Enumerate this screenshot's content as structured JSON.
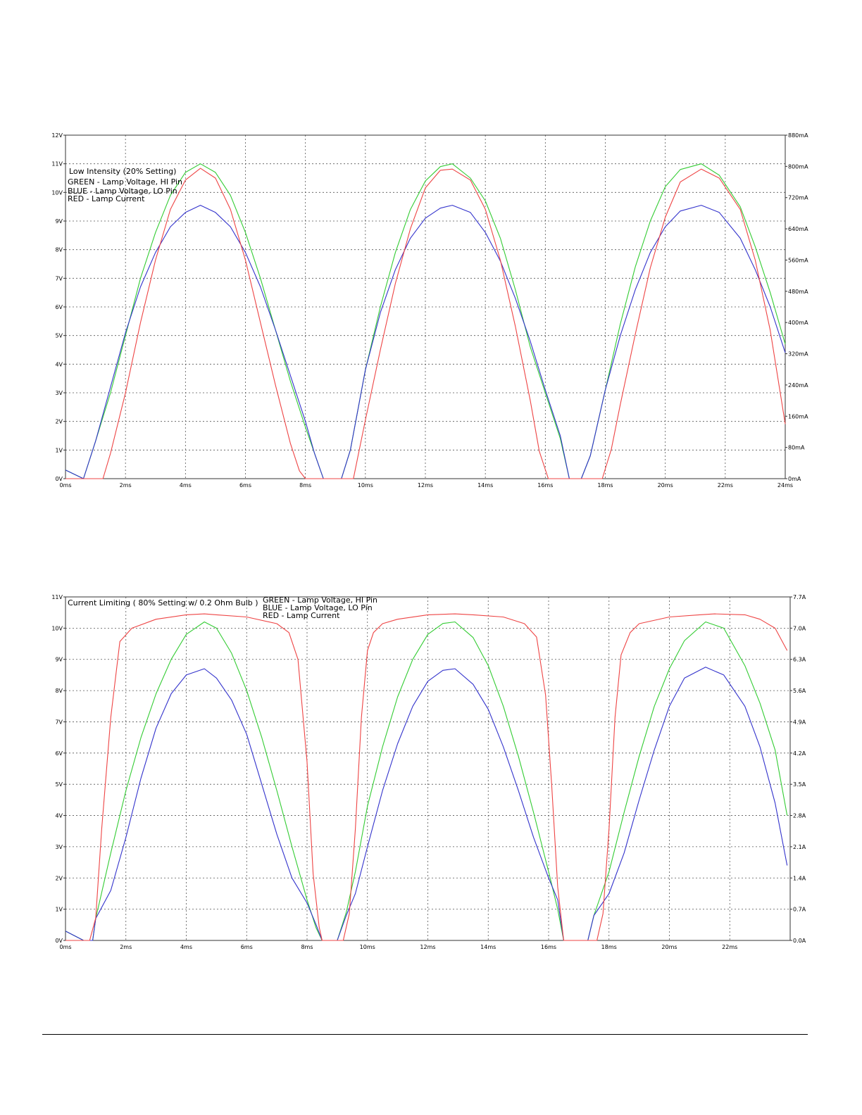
{
  "chart_data": [
    {
      "type": "line",
      "x_tick_labels": [
        "0ms",
        "2ms",
        "4ms",
        "6ms",
        "8ms",
        "10ms",
        "12ms",
        "14ms",
        "16ms",
        "18ms",
        "20ms",
        "22ms",
        "24ms"
      ],
      "x_ticks_ms": [
        0,
        2,
        4,
        6,
        8,
        10,
        12,
        14,
        16,
        18,
        20,
        22,
        24
      ],
      "xlim_ms": [
        0,
        24
      ],
      "y_left_tick_labels": [
        "0V",
        "1V",
        "2V",
        "3V",
        "4V",
        "5V",
        "6V",
        "7V",
        "8V",
        "9V",
        "10V",
        "11V",
        "12V"
      ],
      "y_left_ticks": [
        0,
        1,
        2,
        3,
        4,
        5,
        6,
        7,
        8,
        9,
        10,
        11,
        12
      ],
      "ylim_left": [
        0,
        12
      ],
      "y_right_tick_labels": [
        "0mA",
        "80mA",
        "160mA",
        "240mA",
        "320mA",
        "400mA",
        "480mA",
        "560mA",
        "640mA",
        "720mA",
        "800mA",
        "880mA"
      ],
      "y_right_ticks": [
        0,
        80,
        160,
        240,
        320,
        400,
        480,
        560,
        640,
        720,
        800,
        880
      ],
      "ylim_right": [
        0,
        880
      ],
      "grid": true,
      "annotations": [
        "Low Intensity (20% Setting)",
        "GREEN - Lamp Voltage, HI Pin",
        "BLUE - Lamp Voltage, LO Pin",
        "RED - Lamp Current"
      ],
      "series": [
        {
          "color": "#33cc33",
          "axis": "left",
          "x": [
            0,
            0.6,
            1.0,
            1.5,
            2.0,
            2.5,
            3.0,
            3.5,
            4.0,
            4.5,
            5.0,
            5.5,
            6.0,
            6.5,
            7.0,
            7.5,
            8.0,
            8.3,
            8.6,
            8.9,
            9.2,
            9.5,
            10.0,
            10.5,
            11.0,
            11.5,
            12.0,
            12.5,
            12.9,
            13.5,
            14.0,
            14.5,
            15.0,
            15.5,
            16.0,
            16.5,
            16.8,
            17.2,
            17.5,
            18.0,
            18.5,
            19.0,
            19.5,
            20.0,
            20.5,
            21.2,
            21.8,
            22.5,
            23.0,
            23.5,
            24.0
          ],
          "y": [
            0.3,
            0,
            1.3,
            3.0,
            5.0,
            7.0,
            8.6,
            9.9,
            10.7,
            11.0,
            10.7,
            9.9,
            8.6,
            7.0,
            5.2,
            3.4,
            1.8,
            0.9,
            0,
            0,
            0,
            1.0,
            3.8,
            6.0,
            7.9,
            9.4,
            10.4,
            10.9,
            11.0,
            10.5,
            9.7,
            8.4,
            6.6,
            4.6,
            3.0,
            1.4,
            0,
            0,
            0.8,
            3.1,
            5.4,
            7.4,
            9.0,
            10.2,
            10.8,
            11.0,
            10.6,
            9.5,
            8.1,
            6.5,
            4.7
          ]
        },
        {
          "color": "#3333cc",
          "axis": "left",
          "x": [
            0,
            0.6,
            1.0,
            1.5,
            2.0,
            2.5,
            3.0,
            3.5,
            4.0,
            4.5,
            5.0,
            5.5,
            6.0,
            6.5,
            7.0,
            7.5,
            8.0,
            8.3,
            8.6,
            8.9,
            9.2,
            9.5,
            10.0,
            10.5,
            11.0,
            11.5,
            12.0,
            12.5,
            12.9,
            13.5,
            14.0,
            14.5,
            15.0,
            15.5,
            16.0,
            16.5,
            16.8,
            17.2,
            17.5,
            18.0,
            18.5,
            19.0,
            19.5,
            20.0,
            20.5,
            21.2,
            21.8,
            22.5,
            23.0,
            23.5,
            24.0
          ],
          "y": [
            0.3,
            0,
            1.3,
            3.2,
            5.1,
            6.7,
            7.9,
            8.8,
            9.3,
            9.55,
            9.3,
            8.8,
            7.9,
            6.7,
            5.2,
            3.6,
            2.0,
            0.9,
            0,
            0,
            0,
            1.0,
            3.8,
            5.8,
            7.3,
            8.4,
            9.1,
            9.45,
            9.55,
            9.3,
            8.6,
            7.6,
            6.3,
            4.8,
            3.1,
            1.5,
            0,
            0,
            0.8,
            3.1,
            5.0,
            6.6,
            7.9,
            8.8,
            9.35,
            9.55,
            9.3,
            8.4,
            7.3,
            6.0,
            4.4
          ]
        },
        {
          "color": "#ee4444",
          "axis": "right",
          "x": [
            0,
            1.25,
            1.5,
            2.0,
            2.5,
            3.0,
            3.5,
            4.0,
            4.5,
            5.0,
            5.5,
            6.0,
            6.5,
            7.0,
            7.5,
            7.8,
            8.0,
            9.6,
            10.0,
            10.5,
            11.0,
            11.5,
            12.0,
            12.5,
            12.9,
            13.5,
            14.0,
            14.5,
            15.0,
            15.5,
            15.8,
            16.1,
            17.9,
            18.2,
            18.5,
            19.0,
            19.5,
            20.0,
            20.5,
            21.2,
            21.8,
            22.5,
            23.0,
            23.5,
            24.0
          ],
          "y": [
            0,
            0,
            65,
            220,
            400,
            560,
            690,
            765,
            795,
            770,
            690,
            560,
            400,
            240,
            90,
            20,
            0,
            0,
            150,
            330,
            500,
            640,
            745,
            790,
            793,
            765,
            690,
            560,
            390,
            200,
            70,
            0,
            0,
            75,
            190,
            370,
            540,
            670,
            760,
            793,
            770,
            690,
            560,
            380,
            140
          ]
        }
      ]
    },
    {
      "type": "line",
      "x_tick_labels": [
        "0ms",
        "2ms",
        "4ms",
        "6ms",
        "8ms",
        "10ms",
        "12ms",
        "14ms",
        "16ms",
        "18ms",
        "20ms",
        "22ms"
      ],
      "x_ticks_ms": [
        0,
        2,
        4,
        6,
        8,
        10,
        12,
        14,
        16,
        18,
        20,
        22
      ],
      "xlim_ms": [
        0,
        24
      ],
      "y_left_tick_labels": [
        "0V",
        "1V",
        "2V",
        "3V",
        "4V",
        "5V",
        "6V",
        "7V",
        "8V",
        "9V",
        "10V",
        "11V"
      ],
      "y_left_ticks": [
        0,
        1,
        2,
        3,
        4,
        5,
        6,
        7,
        8,
        9,
        10,
        11
      ],
      "ylim_left": [
        0,
        11
      ],
      "y_right_tick_labels": [
        "0.0A",
        "0.7A",
        "1.4A",
        "2.1A",
        "2.8A",
        "3.5A",
        "4.2A",
        "4.9A",
        "5.6A",
        "6.3A",
        "7.0A",
        "7.7A"
      ],
      "y_right_ticks": [
        0,
        0.7,
        1.4,
        2.1,
        2.8,
        3.5,
        4.2,
        4.9,
        5.6,
        6.3,
        7.0,
        7.7
      ],
      "ylim_right": [
        0,
        7.7
      ],
      "grid": true,
      "annotations": [
        "Current Limiting ( 80% Setting w/ 0.2 Ohm Bulb )",
        "GREEN - Lamp Voltage, HI Pin",
        "BLUE - Lamp Voltage, LO Pin",
        "RED - Lamp Current"
      ],
      "series": [
        {
          "color": "#33cc33",
          "axis": "left",
          "x": [
            0,
            0.6,
            0.9,
            1.0,
            1.5,
            2.0,
            2.5,
            3.0,
            3.5,
            4.0,
            4.6,
            5.0,
            5.5,
            6.0,
            6.5,
            7.0,
            7.5,
            8.0,
            8.3,
            8.5,
            9.0,
            9.3,
            9.6,
            10.0,
            10.5,
            11.0,
            11.5,
            12.0,
            12.5,
            12.9,
            13.5,
            14.0,
            14.5,
            15.0,
            15.5,
            16.0,
            16.3,
            16.5,
            17.3,
            17.5,
            18.0,
            18.5,
            19.0,
            19.5,
            20.0,
            20.5,
            21.2,
            21.8,
            22.5,
            23.0,
            23.5,
            23.9
          ],
          "y": [
            0.3,
            0,
            0,
            0.7,
            2.8,
            4.8,
            6.5,
            7.9,
            9.0,
            9.8,
            10.2,
            10.0,
            9.2,
            8.0,
            6.5,
            4.8,
            3.0,
            1.3,
            0.4,
            0,
            0,
            0.9,
            2.2,
            4.3,
            6.2,
            7.8,
            9.0,
            9.8,
            10.15,
            10.2,
            9.7,
            8.8,
            7.5,
            5.9,
            4.1,
            2.2,
            1.0,
            0,
            0,
            0.8,
            2.2,
            4.1,
            5.9,
            7.5,
            8.7,
            9.6,
            10.2,
            10.0,
            8.8,
            7.6,
            6.1,
            4.0
          ]
        },
        {
          "color": "#3333cc",
          "axis": "left",
          "x": [
            0,
            0.6,
            0.9,
            1.0,
            1.5,
            2.0,
            2.5,
            3.0,
            3.5,
            4.0,
            4.6,
            5.0,
            5.5,
            6.0,
            6.5,
            7.0,
            7.5,
            8.0,
            8.3,
            8.5,
            9.0,
            9.3,
            9.6,
            10.0,
            10.5,
            11.0,
            11.5,
            12.0,
            12.5,
            12.9,
            13.5,
            14.0,
            14.5,
            15.0,
            15.5,
            16.0,
            16.3,
            16.5,
            17.3,
            17.5,
            18.0,
            18.5,
            19.0,
            19.5,
            20.0,
            20.5,
            21.2,
            21.8,
            22.5,
            23.0,
            23.5,
            23.9
          ],
          "y": [
            0.3,
            0,
            0,
            0.7,
            1.6,
            3.3,
            5.2,
            6.8,
            7.9,
            8.5,
            8.7,
            8.4,
            7.7,
            6.6,
            5.0,
            3.4,
            2.0,
            1.2,
            0.5,
            0,
            0,
            0.8,
            1.5,
            3.0,
            4.8,
            6.3,
            7.5,
            8.3,
            8.65,
            8.7,
            8.2,
            7.4,
            6.2,
            4.8,
            3.3,
            2.0,
            1.3,
            0,
            0,
            0.8,
            1.5,
            2.8,
            4.5,
            6.1,
            7.5,
            8.4,
            8.75,
            8.5,
            7.5,
            6.2,
            4.4,
            2.4
          ]
        },
        {
          "color": "#ee4444",
          "axis": "right",
          "x": [
            0,
            0.8,
            1.0,
            1.2,
            1.5,
            1.8,
            2.2,
            3.0,
            4.0,
            4.6,
            5.0,
            6.0,
            7.0,
            7.4,
            7.7,
            8.0,
            8.2,
            8.4,
            8.5,
            9.2,
            9.4,
            9.6,
            9.8,
            10.0,
            10.2,
            10.5,
            11.0,
            12.0,
            12.9,
            13.5,
            14.5,
            15.2,
            15.6,
            15.9,
            16.1,
            16.3,
            16.5,
            17.6,
            17.8,
            18.0,
            18.2,
            18.4,
            18.7,
            19.0,
            20.0,
            21.0,
            21.5,
            22.5,
            23.0,
            23.5,
            23.9
          ],
          "y": [
            0,
            0,
            0.5,
            2.5,
            5.0,
            6.7,
            7.0,
            7.2,
            7.3,
            7.32,
            7.3,
            7.25,
            7.1,
            6.9,
            6.3,
            4.0,
            1.5,
            0.3,
            0,
            0,
            0.6,
            2.5,
            5.0,
            6.5,
            6.9,
            7.1,
            7.2,
            7.3,
            7.32,
            7.3,
            7.25,
            7.1,
            6.8,
            5.5,
            3.5,
            1.2,
            0,
            0,
            0.6,
            2.5,
            5.0,
            6.4,
            6.9,
            7.1,
            7.25,
            7.3,
            7.32,
            7.3,
            7.2,
            7.0,
            6.5
          ]
        }
      ]
    }
  ]
}
